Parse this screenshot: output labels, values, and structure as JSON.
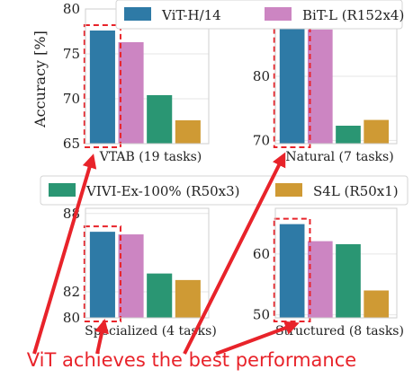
{
  "figure": {
    "ylabel": "Accuracy [%]",
    "caption": "ViT achieves the best performance",
    "annotation_color": "#e8232a"
  },
  "legend": [
    {
      "name": "ViT-H/14",
      "color": "#2e7aa6"
    },
    {
      "name": "BiT-L (R152x4)",
      "color": "#cc85c2"
    },
    {
      "name": "VIVI-Ex-100% (R50x3)",
      "color": "#2a9673"
    },
    {
      "name": "S4L (R50x1)",
      "color": "#cf9a34"
    }
  ],
  "chart_data": [
    {
      "type": "bar",
      "title": "VTAB (19 tasks)",
      "categories": [
        "ViT-H/14",
        "BiT-L (R152x4)",
        "VIVI-Ex-100% (R50x3)",
        "S4L (R50x1)"
      ],
      "values": [
        77.6,
        76.3,
        70.4,
        67.6
      ],
      "yticks": [
        65,
        70,
        75,
        80
      ],
      "ylim": [
        65,
        80
      ],
      "highlight": "ViT-H/14"
    },
    {
      "type": "bar",
      "title": "Natural (7 tasks)",
      "categories": [
        "ViT-H/14",
        "BiT-L (R152x4)",
        "VIVI-Ex-100% (R50x3)",
        "S4L (R50x1)"
      ],
      "values": [
        88.3,
        87.3,
        72.3,
        73.2
      ],
      "yticks": [
        70,
        80
      ],
      "ylim": [
        69.5,
        90.5
      ],
      "highlight": "ViT-H/14"
    },
    {
      "type": "bar",
      "title": "Specialized (4 tasks)",
      "categories": [
        "ViT-H/14",
        "BiT-L (R152x4)",
        "VIVI-Ex-100% (R50x3)",
        "S4L (R50x1)"
      ],
      "values": [
        86.6,
        86.4,
        83.4,
        82.9
      ],
      "yticks": [
        80,
        82,
        88
      ],
      "ylim": [
        80,
        88.4
      ],
      "highlight": "ViT-H/14"
    },
    {
      "type": "bar",
      "title": "Structured (8 tasks)",
      "categories": [
        "ViT-H/14",
        "BiT-L (R152x4)",
        "VIVI-Ex-100% (R50x3)",
        "S4L (R50x1)"
      ],
      "values": [
        64.9,
        62.1,
        61.6,
        54.0
      ],
      "yticks": [
        50,
        60
      ],
      "ylim": [
        49.5,
        67.5
      ],
      "highlight": "ViT-H/14"
    }
  ]
}
